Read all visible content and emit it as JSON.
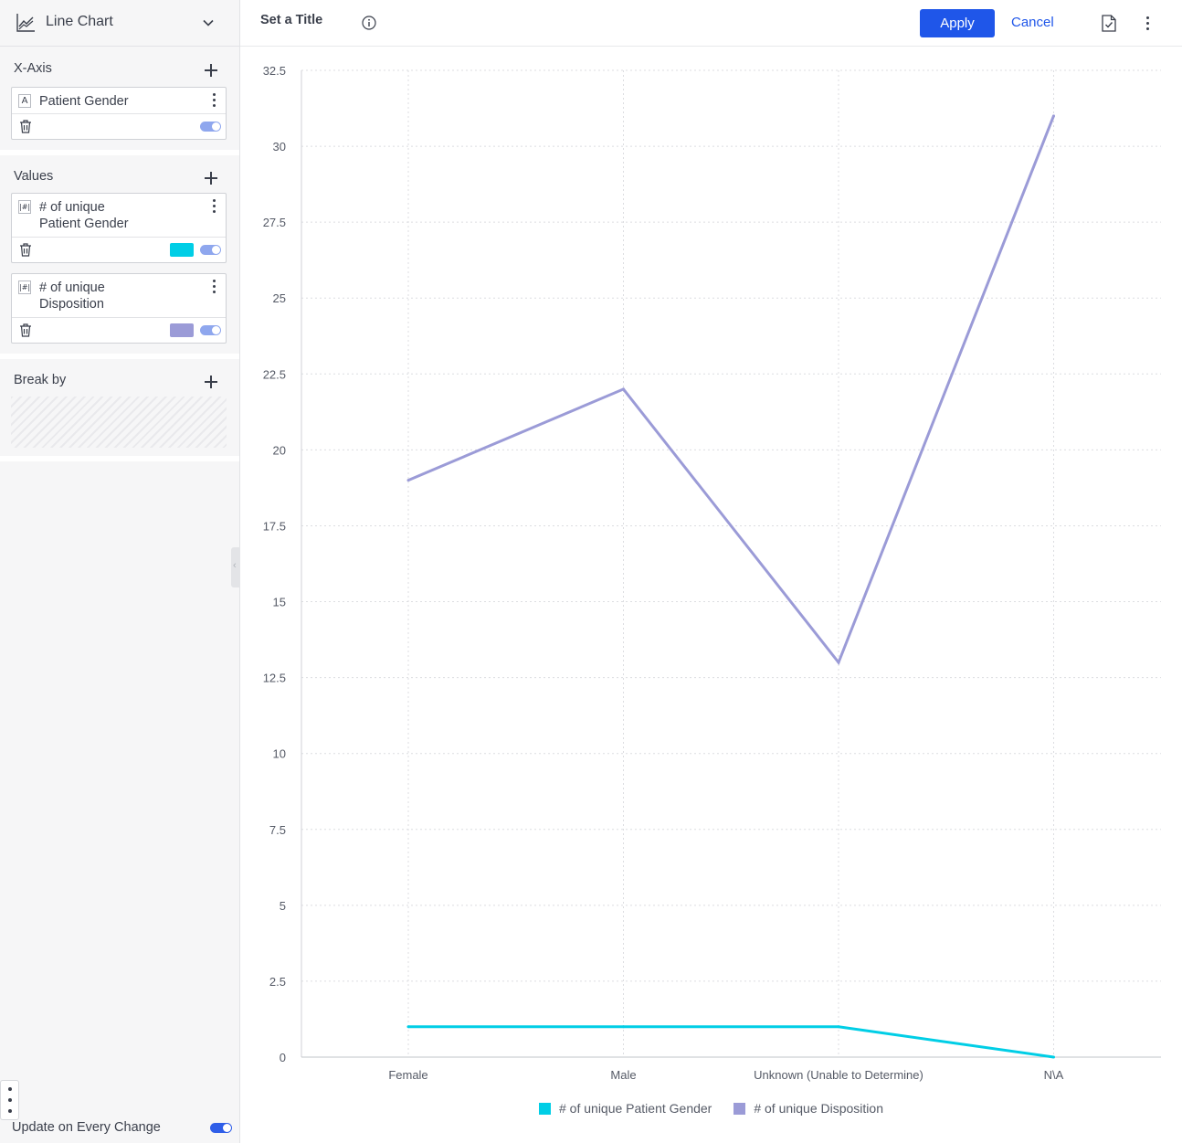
{
  "sidebar": {
    "chart_type": "Line Chart",
    "sections": {
      "xaxis": {
        "title": "X-Axis",
        "fields": [
          {
            "type_badge": "A",
            "name": "Patient Gender",
            "enabled": true
          }
        ]
      },
      "values": {
        "title": "Values",
        "fields": [
          {
            "type_badge": "|#|",
            "name_line1": "# of unique",
            "name_line2": "Patient Gender",
            "color": "#00cee6",
            "enabled": true
          },
          {
            "type_badge": "|#|",
            "name_line1": "# of unique",
            "name_line2": "Disposition",
            "color": "#9b9bd7",
            "enabled": true
          }
        ]
      },
      "breakby": {
        "title": "Break by"
      }
    },
    "update_label": "Update on Every Change",
    "update_enabled": true
  },
  "header": {
    "title_placeholder": "Set a Title",
    "apply_label": "Apply",
    "cancel_label": "Cancel"
  },
  "colors": {
    "accent": "#1f56e9",
    "series1": "#00cee6",
    "series2": "#9b9bd7"
  },
  "chart_data": {
    "type": "line",
    "categories": [
      "Female",
      "Male",
      "Unknown (Unable to Determine)",
      "N\\A"
    ],
    "series": [
      {
        "name": "# of unique Patient Gender",
        "values": [
          1,
          1,
          1,
          0
        ],
        "color": "#00cee6"
      },
      {
        "name": "# of unique Disposition",
        "values": [
          19,
          22,
          13,
          31
        ],
        "color": "#9b9bd7"
      }
    ],
    "yticks": [
      "0",
      "2.5",
      "5",
      "7.5",
      "10",
      "12.5",
      "15",
      "17.5",
      "20",
      "22.5",
      "25",
      "27.5",
      "30",
      "32.5"
    ],
    "ylim": [
      0,
      32.5
    ],
    "grid": true,
    "legend_position": "bottom"
  }
}
